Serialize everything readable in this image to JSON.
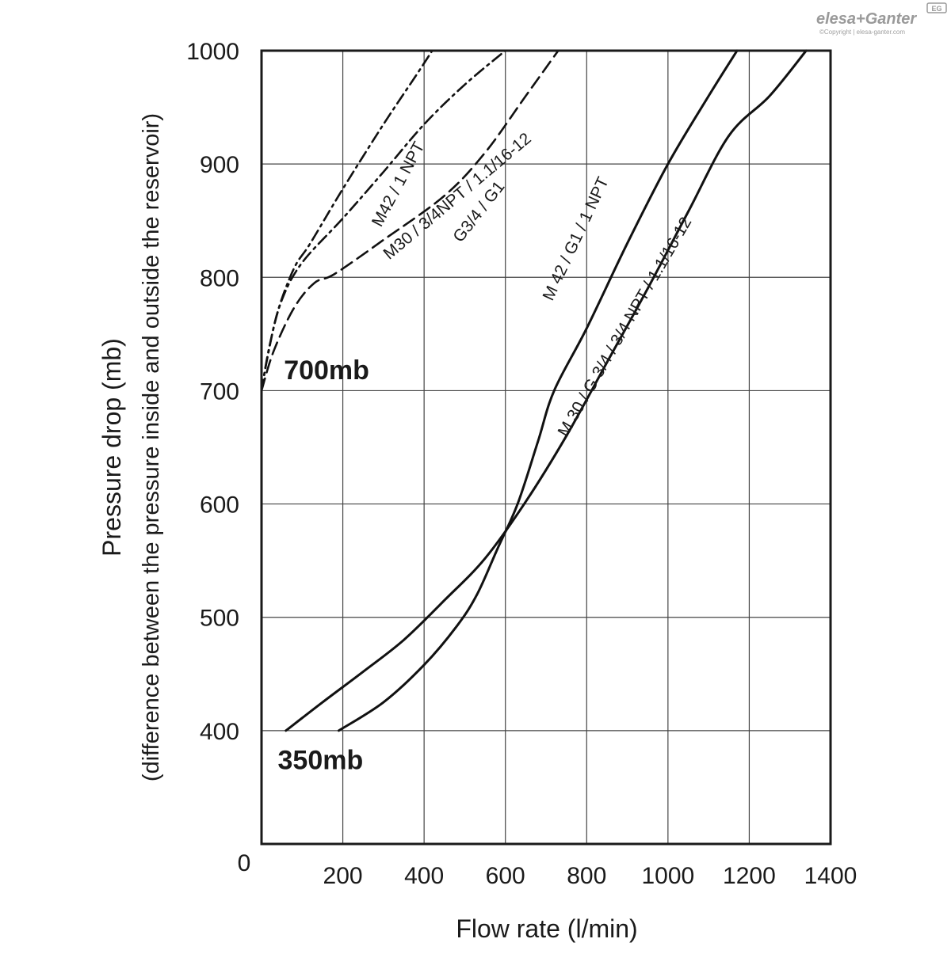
{
  "brand": {
    "name": "elesa+Ganter",
    "badge": "EG",
    "copyright": "©Copyright | elesa-ganter.com"
  },
  "chart_data": {
    "type": "line",
    "xlabel": "Flow rate (l/min)",
    "ylabel": "Pressure drop (mb)",
    "ylabel_sub": "(difference between the pressure inside and outside the reservoir)",
    "xlim": [
      0,
      1400
    ],
    "ylim": [
      300,
      1000
    ],
    "origin_label": "0",
    "x_ticks": [
      200,
      400,
      600,
      800,
      1000,
      1200,
      1400
    ],
    "y_ticks": [
      400,
      500,
      600,
      700,
      800,
      900,
      1000
    ],
    "grid": true,
    "series": [
      {
        "name": "M42 / 1 NPT",
        "style": "dash-dot",
        "points": [
          [
            0,
            700
          ],
          [
            15,
            730
          ],
          [
            40,
            770
          ],
          [
            80,
            808
          ],
          [
            120,
            830
          ],
          [
            200,
            878
          ],
          [
            300,
            935
          ],
          [
            380,
            978
          ],
          [
            420,
            1000
          ]
        ]
      },
      {
        "name": "M30 / 3/4 NPT / 1.1/16-12",
        "style": "dash-dot",
        "points": [
          [
            0,
            700
          ],
          [
            20,
            740
          ],
          [
            50,
            780
          ],
          [
            100,
            813
          ],
          [
            200,
            852
          ],
          [
            300,
            893
          ],
          [
            400,
            935
          ],
          [
            500,
            970
          ],
          [
            600,
            1000
          ]
        ]
      },
      {
        "name": "G3/4 / G1",
        "style": "dash",
        "points": [
          [
            0,
            700
          ],
          [
            30,
            735
          ],
          [
            80,
            773
          ],
          [
            130,
            795
          ],
          [
            180,
            803
          ],
          [
            300,
            833
          ],
          [
            450,
            872
          ],
          [
            550,
            910
          ],
          [
            650,
            960
          ],
          [
            730,
            1000
          ]
        ]
      },
      {
        "name": "M42 / G1 / 1 NPT",
        "style": "solid",
        "points": [
          [
            190,
            400
          ],
          [
            300,
            425
          ],
          [
            400,
            458
          ],
          [
            480,
            492
          ],
          [
            530,
            520
          ],
          [
            580,
            560
          ],
          [
            630,
            600
          ],
          [
            680,
            655
          ],
          [
            720,
            700
          ],
          [
            800,
            755
          ],
          [
            900,
            830
          ],
          [
            1000,
            900
          ],
          [
            1100,
            960
          ],
          [
            1170,
            1000
          ]
        ]
      },
      {
        "name": "M 30 / G 3/4 / 3/4 NPT / 1.1/16-12",
        "style": "solid",
        "points": [
          [
            60,
            400
          ],
          [
            150,
            425
          ],
          [
            250,
            452
          ],
          [
            350,
            480
          ],
          [
            450,
            515
          ],
          [
            550,
            552
          ],
          [
            650,
            602
          ],
          [
            750,
            660
          ],
          [
            850,
            725
          ],
          [
            950,
            790
          ],
          [
            1050,
            858
          ],
          [
            1150,
            925
          ],
          [
            1250,
            960
          ],
          [
            1340,
            1000
          ]
        ]
      }
    ],
    "curve_labels": [
      {
        "text": "M42 / 1 NPT",
        "x": 348,
        "y": 880,
        "angle": -62
      },
      {
        "text": "M30 / 3/4NPT / 1.1/16-12",
        "x": 490,
        "y": 868,
        "angle": -40
      },
      {
        "text": "G3/4 / G1",
        "x": 545,
        "y": 855,
        "angle": -52
      },
      {
        "text": "M 42 / G1 / 1 NPT",
        "x": 785,
        "y": 832,
        "angle": -65
      },
      {
        "text": "M 30 / G 3/4 / 3/4 NPT / 1.1/16-12",
        "x": 905,
        "y": 754,
        "angle": -60
      }
    ],
    "annotations": [
      {
        "text": "700mb",
        "x": 55,
        "y": 710
      },
      {
        "text": "350mb",
        "x": 40,
        "y": 366
      }
    ]
  }
}
